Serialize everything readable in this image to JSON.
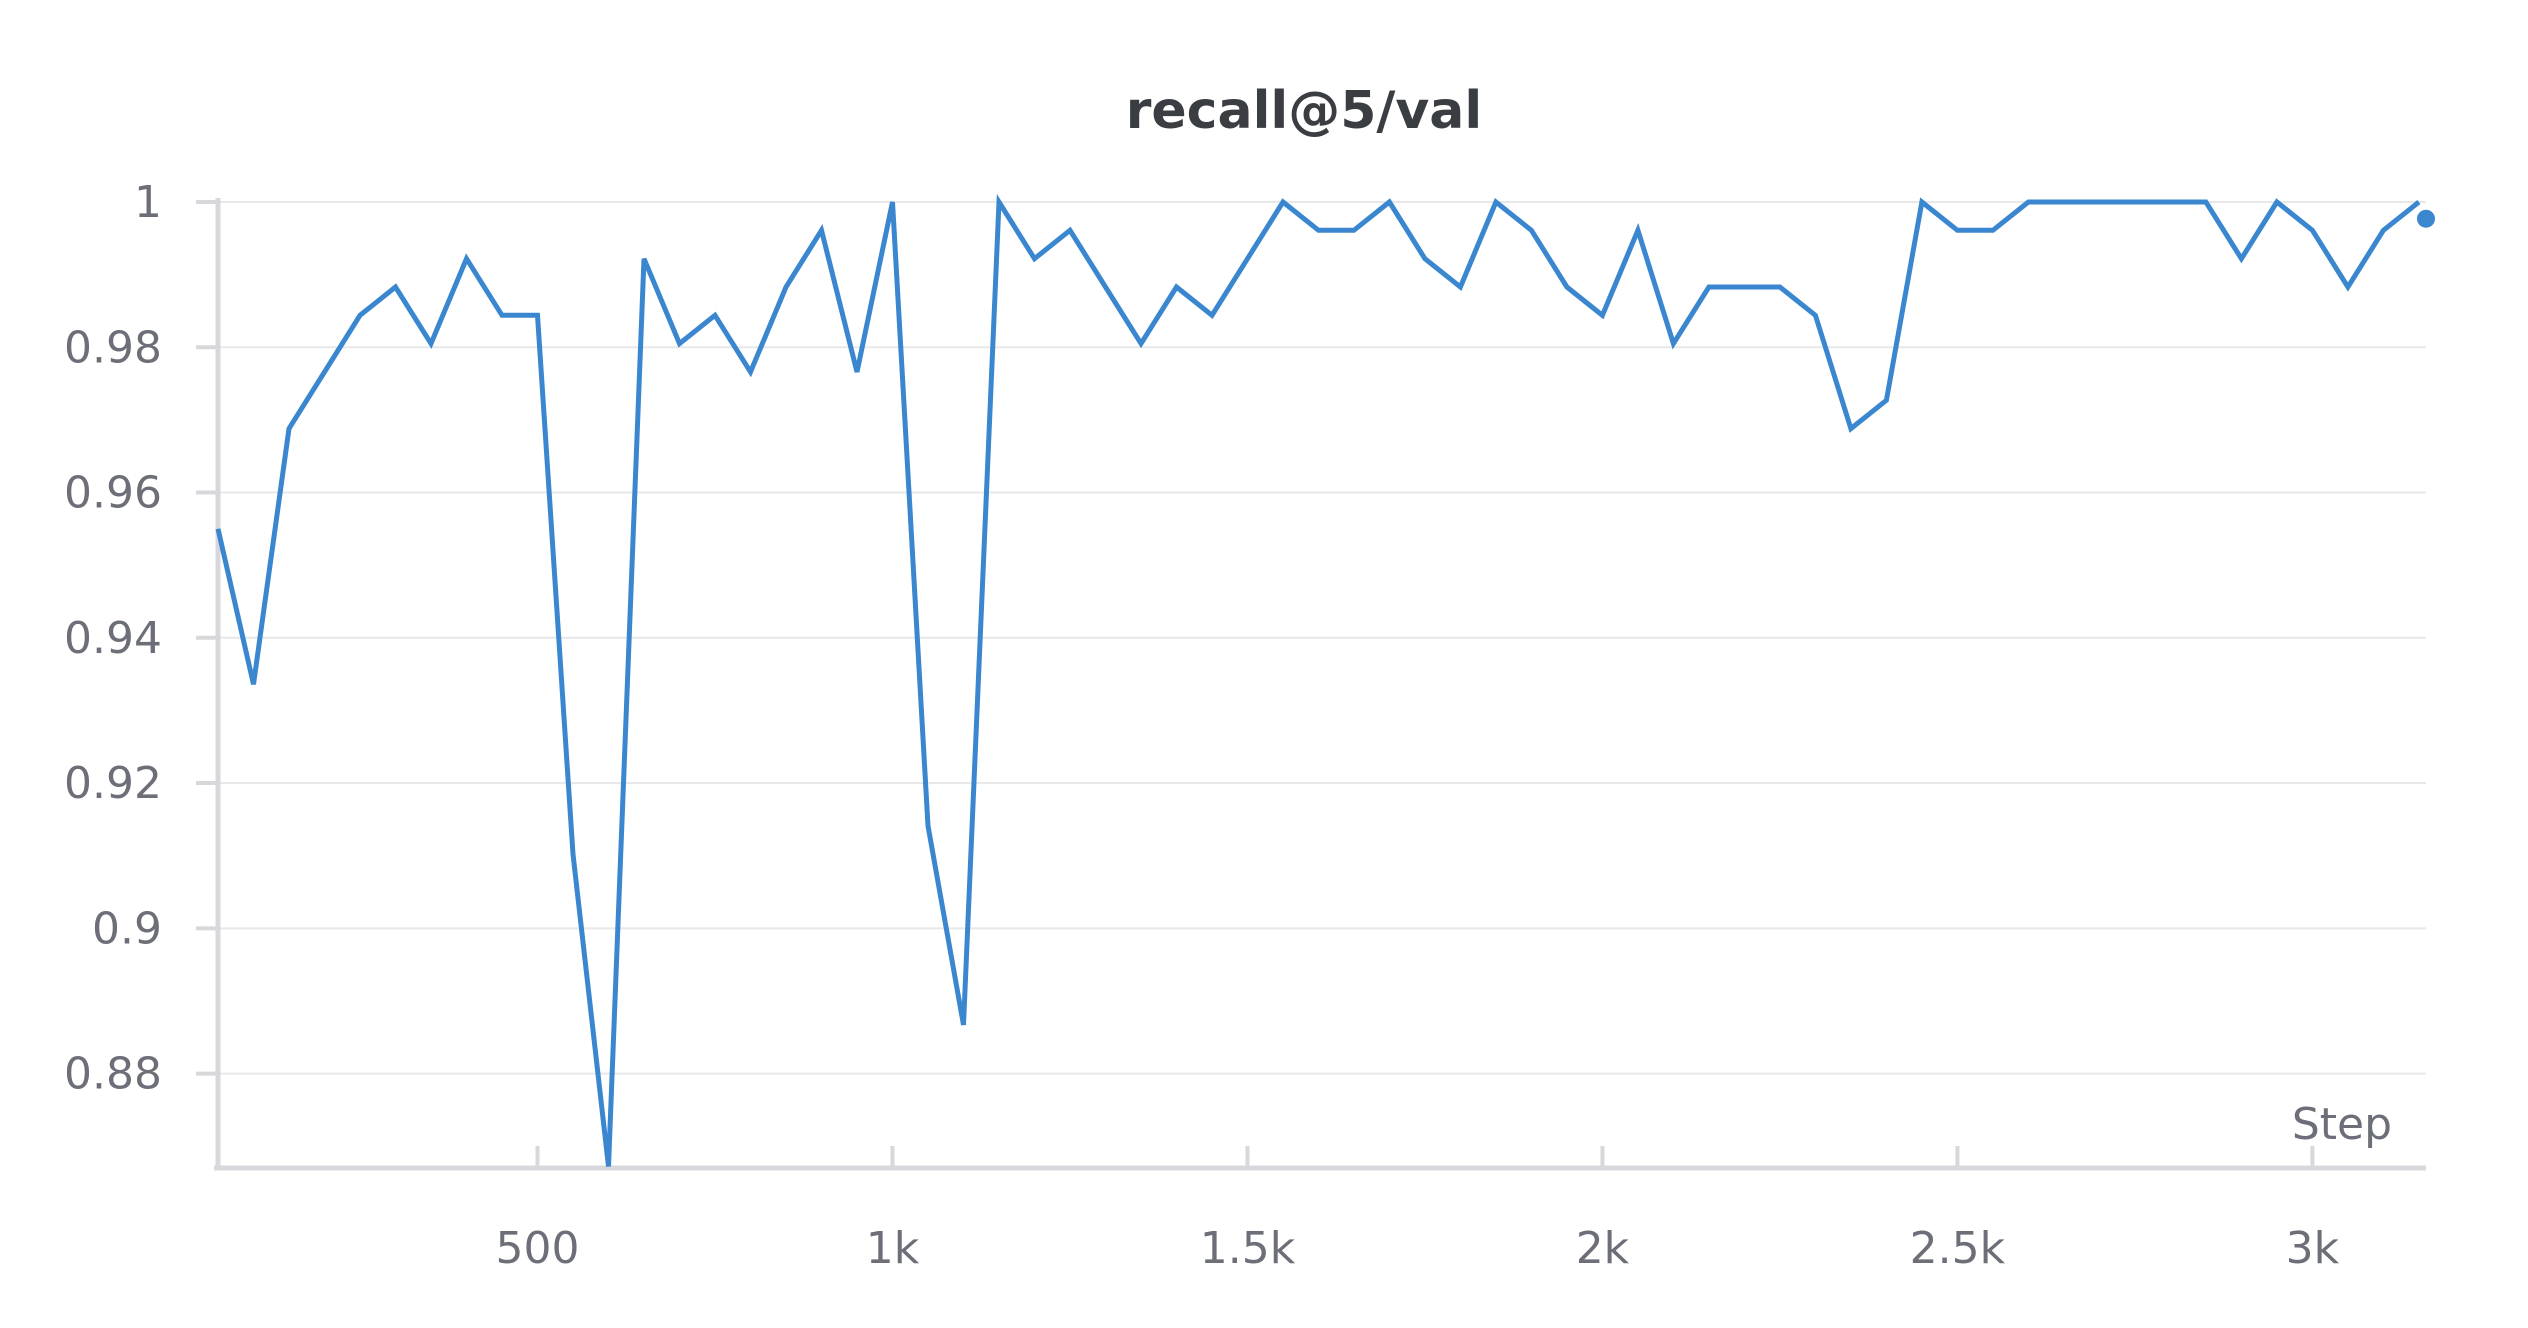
{
  "chart_data": {
    "type": "line",
    "title": "recall@5/val",
    "xlabel": "Step",
    "ylabel": "",
    "xlim": [
      50,
      3160
    ],
    "ylim": [
      0.867,
      1.0
    ],
    "xticks": [
      500,
      1000,
      1500,
      2000,
      2500,
      3000
    ],
    "xtick_labels": [
      "500",
      "1k",
      "1.5k",
      "2k",
      "2.5k",
      "3k"
    ],
    "yticks": [
      0.88,
      0.9,
      0.92,
      0.94,
      0.96,
      0.98,
      1.0
    ],
    "ytick_labels": [
      "0.88",
      "0.9",
      "0.92",
      "0.94",
      "0.96",
      "0.98",
      "1"
    ],
    "grid": true,
    "series": [
      {
        "color": "#3a87d0",
        "x": [
          50,
          100,
          150,
          200,
          250,
          300,
          350,
          400,
          450,
          500,
          550,
          600,
          650,
          700,
          750,
          800,
          850,
          900,
          950,
          1000,
          1050,
          1100,
          1150,
          1200,
          1250,
          1300,
          1350,
          1400,
          1450,
          1500,
          1550,
          1600,
          1650,
          1700,
          1750,
          1800,
          1850,
          1900,
          1950,
          2000,
          2050,
          2100,
          2150,
          2200,
          2250,
          2300,
          2350,
          2400,
          2450,
          2500,
          2550,
          2600,
          2650,
          2700,
          2750,
          2800,
          2850,
          2900,
          2950,
          3000,
          3050,
          3100,
          3150
        ],
        "values": [
          0.955,
          0.9336,
          0.9688,
          0.9766,
          0.9844,
          0.9883,
          0.9805,
          0.9922,
          0.9844,
          0.9844,
          0.9102,
          0.8672,
          0.9922,
          0.9805,
          0.9844,
          0.9766,
          0.9883,
          0.9961,
          0.9766,
          1.0,
          0.9141,
          0.8867,
          1.0,
          0.9922,
          0.9961,
          0.9883,
          0.9805,
          0.9883,
          0.9844,
          0.9922,
          1.0,
          0.9961,
          0.9961,
          1.0,
          0.9922,
          0.9883,
          1.0,
          0.9961,
          0.9883,
          0.9844,
          0.9961,
          0.9805,
          0.9883,
          0.9883,
          0.9883,
          0.9844,
          0.9688,
          0.9727,
          1.0,
          0.9961,
          0.9961,
          1.0,
          1.0,
          1.0,
          1.0,
          1.0,
          1.0,
          0.9922,
          1.0,
          0.9961,
          0.9883,
          0.9961,
          1.0
        ],
        "last_point": {
          "x": 3160,
          "value": 0.9977
        }
      }
    ]
  }
}
